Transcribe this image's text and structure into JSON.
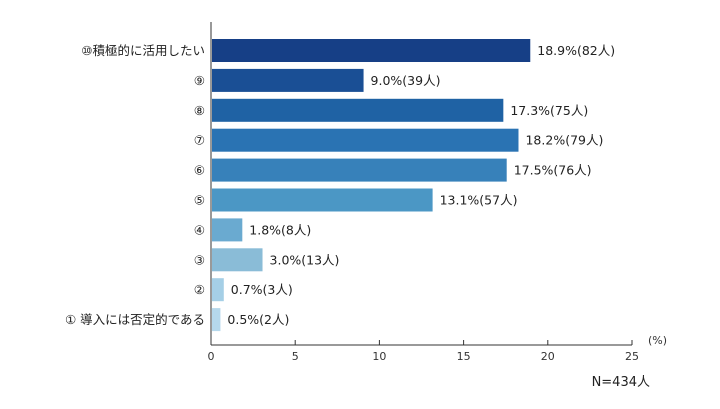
{
  "chart_data": {
    "type": "bar",
    "orientation": "horizontal",
    "categories": [
      "⑩積極的に活用したい",
      "⑨",
      "⑧",
      "⑦",
      "⑥",
      "⑤",
      "④",
      "③",
      "②",
      "① 導入には否定的である"
    ],
    "values": [
      18.9,
      9.0,
      17.3,
      18.2,
      17.5,
      13.1,
      1.8,
      3.0,
      0.7,
      0.5
    ],
    "data_labels": [
      "18.9%(82人)",
      "9.0%(39人)",
      "17.3%(75人)",
      "18.2%(79人)",
      "17.5%(76人)",
      "13.1%(57人)",
      "1.8%(8人)",
      "3.0%(13人)",
      "0.7%(3人)",
      "0.5%(2人)"
    ],
    "colors": [
      "#163f86",
      "#1a4f95",
      "#1f62a4",
      "#2a73b3",
      "#3781ba",
      "#4b97c5",
      "#6aaad0",
      "#8abcd7",
      "#a5cfe6",
      "#b5d8ec"
    ],
    "xlim": [
      0,
      25
    ],
    "xticks": [
      "0",
      "5",
      "10",
      "15",
      "20",
      "25"
    ],
    "unit_label": "(%)",
    "grid": false
  },
  "footnote": "N=434人"
}
